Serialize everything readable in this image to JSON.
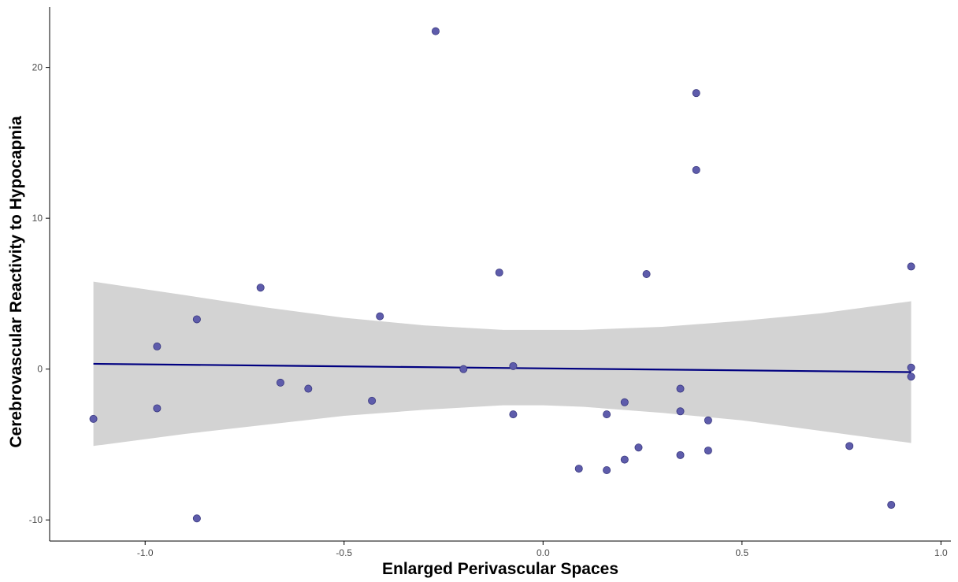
{
  "chart_data": {
    "type": "scatter",
    "xlabel": "Enlarged Perivascular Spaces",
    "ylabel": "Cerebrovascular Reactivity to Hypocapnia",
    "xlim": [
      -1.24,
      1.025
    ],
    "ylim": [
      -11.4,
      24.0
    ],
    "x_ticks": [
      -1.0,
      -0.5,
      0.0,
      0.5,
      1.0
    ],
    "x_tick_labels": [
      "-1.0",
      "-0.5",
      "0.0",
      "0.5",
      "1.0"
    ],
    "y_ticks": [
      -10,
      0,
      10,
      20
    ],
    "y_tick_labels": [
      "-10",
      "0",
      "10",
      "20"
    ],
    "grid": false,
    "points": [
      {
        "x": -1.13,
        "y": -3.3
      },
      {
        "x": -0.97,
        "y": 1.5
      },
      {
        "x": -0.97,
        "y": -2.6
      },
      {
        "x": -0.87,
        "y": 3.3
      },
      {
        "x": -0.87,
        "y": -9.9
      },
      {
        "x": -0.71,
        "y": 5.4
      },
      {
        "x": -0.66,
        "y": -0.9
      },
      {
        "x": -0.59,
        "y": -1.3
      },
      {
        "x": -0.43,
        "y": -2.1
      },
      {
        "x": -0.41,
        "y": 3.5
      },
      {
        "x": -0.27,
        "y": 22.4
      },
      {
        "x": -0.2,
        "y": 0.0
      },
      {
        "x": -0.11,
        "y": 6.4
      },
      {
        "x": -0.075,
        "y": 0.2
      },
      {
        "x": -0.075,
        "y": -3.0
      },
      {
        "x": 0.09,
        "y": -6.6
      },
      {
        "x": 0.16,
        "y": -3.0
      },
      {
        "x": 0.16,
        "y": -6.7
      },
      {
        "x": 0.205,
        "y": -2.2
      },
      {
        "x": 0.205,
        "y": -6.0
      },
      {
        "x": 0.24,
        "y": -5.2
      },
      {
        "x": 0.26,
        "y": 6.3
      },
      {
        "x": 0.345,
        "y": -1.3
      },
      {
        "x": 0.345,
        "y": -2.8
      },
      {
        "x": 0.345,
        "y": -5.7
      },
      {
        "x": 0.385,
        "y": 18.3
      },
      {
        "x": 0.385,
        "y": 13.2
      },
      {
        "x": 0.415,
        "y": -3.4
      },
      {
        "x": 0.415,
        "y": -5.4
      },
      {
        "x": 0.77,
        "y": -5.1
      },
      {
        "x": 0.875,
        "y": -9.0
      },
      {
        "x": 0.925,
        "y": 6.8
      },
      {
        "x": 0.925,
        "y": 0.1
      },
      {
        "x": 0.925,
        "y": -0.5
      }
    ],
    "fit_line": {
      "x": [
        -1.13,
        0.925
      ],
      "y": [
        0.35,
        -0.2
      ]
    },
    "confidence_band": {
      "x": [
        -1.13,
        -0.9,
        -0.7,
        -0.5,
        -0.3,
        -0.1,
        0.0,
        0.1,
        0.3,
        0.5,
        0.7,
        0.925
      ],
      "upper": [
        5.8,
        4.9,
        4.1,
        3.4,
        2.9,
        2.6,
        2.6,
        2.6,
        2.8,
        3.2,
        3.7,
        4.5
      ],
      "lower": [
        -5.1,
        -4.3,
        -3.7,
        -3.1,
        -2.7,
        -2.4,
        -2.4,
        -2.5,
        -2.9,
        -3.4,
        -4.1,
        -4.9
      ]
    },
    "colors": {
      "point_fill": "#5e5cab",
      "point_stroke": "#3b3a80",
      "fit_line": "#000080",
      "band": "#d3d3d3",
      "axis": "#000000",
      "tick_label": "#4d4d4d"
    }
  }
}
